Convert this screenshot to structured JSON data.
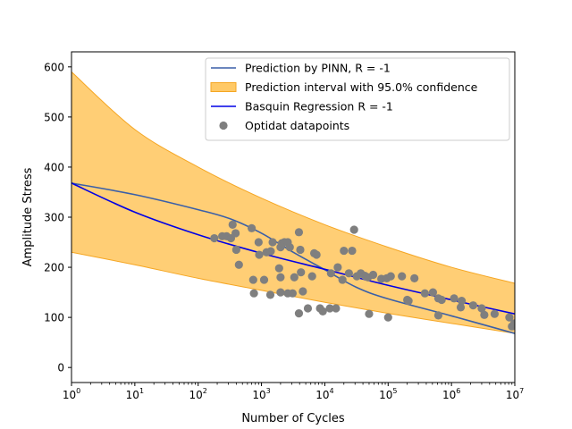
{
  "chart_data": {
    "type": "scatter",
    "xlabel": "Number of Cycles",
    "ylabel": "Amplitude Stress",
    "xscale": "log",
    "xlim": [
      1,
      10000000
    ],
    "ylim": [
      -30,
      630
    ],
    "x_ticks": [
      {
        "value": 1,
        "base": "10",
        "exp": "0"
      },
      {
        "value": 10,
        "base": "10",
        "exp": "1"
      },
      {
        "value": 100,
        "base": "10",
        "exp": "2"
      },
      {
        "value": 1000,
        "base": "10",
        "exp": "3"
      },
      {
        "value": 10000,
        "base": "10",
        "exp": "4"
      },
      {
        "value": 100000,
        "base": "10",
        "exp": "5"
      },
      {
        "value": 1000000,
        "base": "10",
        "exp": "6"
      },
      {
        "value": 10000000,
        "base": "10",
        "exp": "7"
      }
    ],
    "y_ticks": [
      0,
      100,
      200,
      300,
      400,
      500,
      600
    ],
    "grid": false,
    "legend_position": "top-right",
    "colors": {
      "pinn": "#3a5fa8",
      "band_fill": "#ffc966",
      "band_edge": "#f5a623",
      "basquin": "#0000e6",
      "points": "#7f7f7f"
    },
    "legend": [
      {
        "label": "Prediction by PINN, R = -1",
        "kind": "line",
        "color": "#3a5fa8"
      },
      {
        "label": "Prediction interval with 95.0% confidence",
        "kind": "patch",
        "color": "#ffc966"
      },
      {
        "label": "Basquin Regression R = -1",
        "kind": "line",
        "color": "#0000e6"
      },
      {
        "label": "Optidat datapoints",
        "kind": "marker",
        "color": "#7f7f7f"
      }
    ],
    "series": [
      {
        "name": "Prediction by PINN, R = -1",
        "type": "line",
        "x": [
          1,
          10,
          100,
          316,
          1000,
          3162,
          10000,
          31623,
          100000,
          1000000,
          10000000
        ],
        "y": [
          368,
          345,
          315,
          297,
          268,
          230,
          195,
          160,
          137,
          103,
          68
        ]
      },
      {
        "name": "Basquin Regression R = -1",
        "type": "line",
        "x": [
          1,
          10,
          100,
          1000,
          10000,
          100000,
          1000000,
          10000000
        ],
        "y": [
          368,
          310,
          265,
          228,
          196,
          164,
          135,
          107
        ]
      },
      {
        "name": "Prediction interval with 95.0% confidence",
        "type": "band",
        "x": [
          1,
          10,
          100,
          1000,
          10000,
          100000,
          1000000,
          10000000
        ],
        "upper": [
          590,
          475,
          400,
          338,
          285,
          240,
          200,
          168
        ],
        "lower": [
          230,
          205,
          178,
          154,
          130,
          108,
          88,
          68
        ]
      },
      {
        "name": "Optidat datapoints",
        "type": "scatter",
        "points": [
          [
            180,
            258
          ],
          [
            240,
            262
          ],
          [
            280,
            262
          ],
          [
            330,
            258
          ],
          [
            350,
            285
          ],
          [
            390,
            268
          ],
          [
            400,
            235
          ],
          [
            440,
            205
          ],
          [
            700,
            278
          ],
          [
            900,
            250
          ],
          [
            920,
            225
          ],
          [
            1200,
            230
          ],
          [
            1400,
            232
          ],
          [
            1500,
            250
          ],
          [
            1900,
            198
          ],
          [
            2000,
            240
          ],
          [
            2100,
            248
          ],
          [
            2300,
            250
          ],
          [
            2600,
            250
          ],
          [
            2800,
            240
          ],
          [
            3900,
            270
          ],
          [
            4100,
            235
          ],
          [
            6800,
            228
          ],
          [
            7400,
            225
          ],
          [
            4200,
            190
          ],
          [
            2000,
            180
          ],
          [
            3300,
            180
          ],
          [
            6300,
            182
          ],
          [
            8400,
            118
          ],
          [
            9300,
            112
          ],
          [
            12000,
            118
          ],
          [
            15000,
            118
          ],
          [
            12500,
            188
          ],
          [
            16000,
            200
          ],
          [
            19000,
            175
          ],
          [
            20000,
            233
          ],
          [
            24000,
            188
          ],
          [
            27000,
            233
          ],
          [
            29000,
            275
          ],
          [
            32000,
            182
          ],
          [
            37000,
            188
          ],
          [
            43000,
            183
          ],
          [
            48000,
            180
          ],
          [
            58000,
            185
          ],
          [
            78000,
            177
          ],
          [
            95000,
            178
          ],
          [
            110000,
            182
          ],
          [
            165000,
            182
          ],
          [
            260000,
            178
          ],
          [
            380000,
            148
          ],
          [
            510000,
            150
          ],
          [
            620000,
            138
          ],
          [
            700000,
            135
          ],
          [
            1100000,
            138
          ],
          [
            1450000,
            133
          ],
          [
            2200000,
            124
          ],
          [
            3000000,
            118
          ],
          [
            4800000,
            107
          ],
          [
            8200000,
            100
          ],
          [
            9000000,
            82
          ],
          [
            9800000,
            88
          ],
          [
            740,
            175
          ],
          [
            760,
            148
          ],
          [
            1100,
            175
          ],
          [
            1380,
            145
          ],
          [
            2000,
            150
          ],
          [
            2600,
            148
          ],
          [
            3100,
            148
          ],
          [
            3900,
            108
          ],
          [
            4500,
            152
          ],
          [
            5400,
            118
          ],
          [
            50000,
            107
          ],
          [
            100000,
            100
          ],
          [
            200000,
            135
          ],
          [
            210000,
            133
          ],
          [
            620000,
            104
          ],
          [
            1400000,
            120
          ],
          [
            3300000,
            105
          ]
        ]
      }
    ]
  }
}
